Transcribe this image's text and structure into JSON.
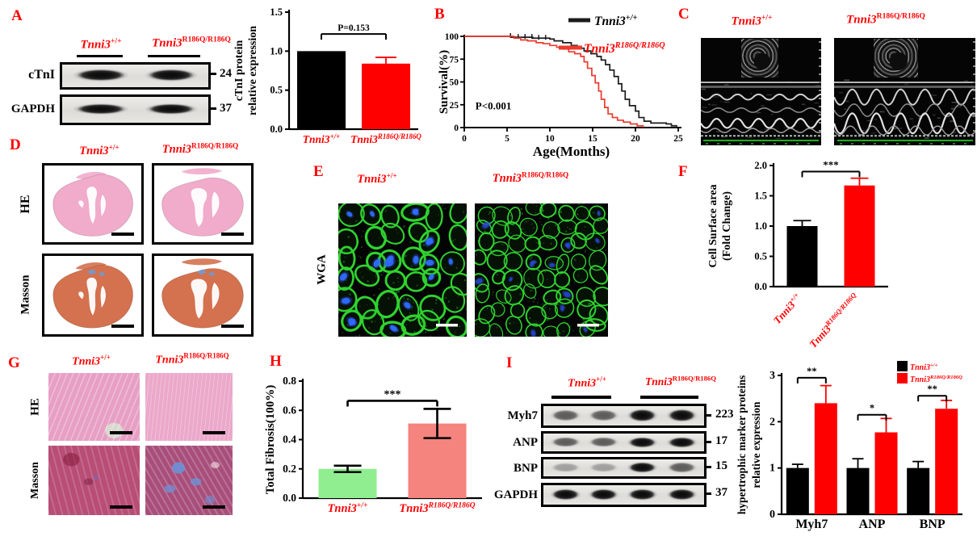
{
  "figure": {
    "genotypes": {
      "wt": {
        "base": "Tnni3",
        "sup": "+/+"
      },
      "mut": {
        "base": "Tnni3",
        "sup": "R186Q/R186Q"
      }
    },
    "colors": {
      "accent_red": "#ff0000",
      "bar_black": "#000000",
      "bar_red": "#ff0000",
      "bar_green": "#90ee90",
      "bar_salmon": "#f5837e",
      "wga_green": "#2fd32f",
      "nucleus_blue": "#2e6bff"
    },
    "panels": {
      "A": {
        "letter": "A",
        "blot_rows": [
          {
            "label": "cTnI",
            "mw": "24"
          },
          {
            "label": "GAPDH",
            "mw": "37"
          }
        ]
      },
      "B": {
        "letter": "B"
      },
      "C": {
        "letter": "C"
      },
      "D": {
        "letter": "D",
        "row_labels": [
          "HE",
          "Masson"
        ]
      },
      "E": {
        "letter": "E",
        "row_label": "WGA"
      },
      "F": {
        "letter": "F"
      },
      "G": {
        "letter": "G",
        "row_labels": [
          "HE",
          "Masson"
        ]
      },
      "H": {
        "letter": "H"
      },
      "I": {
        "letter": "I",
        "blot_rows": [
          {
            "label": "Myh7",
            "mw": "223"
          },
          {
            "label": "ANP",
            "mw": "17"
          },
          {
            "label": "BNP",
            "mw": "15"
          },
          {
            "label": "GAPDH",
            "mw": "37"
          }
        ]
      }
    }
  },
  "chart_data": [
    {
      "type": "bar",
      "title": "",
      "categories": [
        {
          "ref": "wt"
        },
        {
          "ref": "mut"
        }
      ],
      "values": [
        1.0,
        0.84
      ],
      "errors": [
        0,
        0.08
      ],
      "bar_colors": [
        "#000000",
        "#ff0000"
      ],
      "xlabel": "",
      "ylabel": "cTnI protein\nrelative expression",
      "ylim": [
        0,
        1.5
      ],
      "yticks": [
        "0.0",
        "0.5",
        "1.0",
        "1.5"
      ],
      "sig": [
        {
          "a": 0,
          "b": 1,
          "y": 1.22,
          "label": "P=0.153"
        }
      ]
    },
    {
      "type": "km",
      "title": "",
      "xlabel": "Age(Months)",
      "ylabel": "Survival(%)",
      "xlim": [
        0,
        25
      ],
      "ylim": [
        0,
        100
      ],
      "xticks": [
        "0",
        "5",
        "10",
        "15",
        "20",
        "25"
      ],
      "yticks": [
        "0",
        "25",
        "50",
        "75",
        "100"
      ],
      "annotation": {
        "text": "P<0.001",
        "x": 1.3,
        "y": 20
      },
      "series": [
        {
          "name_ref": "wt",
          "color": "#1b1b1b",
          "text_color": "#000000",
          "censors": [
            5.4,
            6.3,
            7.1,
            7.9,
            8.7,
            9.5
          ],
          "points": [
            [
              0,
              100
            ],
            [
              5,
              100
            ],
            [
              5.5,
              99
            ],
            [
              7,
              99
            ],
            [
              8,
              98
            ],
            [
              10,
              97
            ],
            [
              10.5,
              95
            ],
            [
              11.5,
              93
            ],
            [
              12.5,
              90
            ],
            [
              13.2,
              87
            ],
            [
              14,
              84
            ],
            [
              14.8,
              81
            ],
            [
              15.5,
              78
            ],
            [
              16,
              74
            ],
            [
              16.5,
              69
            ],
            [
              17,
              63
            ],
            [
              17.5,
              56
            ],
            [
              18,
              48
            ],
            [
              18.4,
              40
            ],
            [
              18.8,
              31
            ],
            [
              19.3,
              24
            ],
            [
              20,
              18
            ],
            [
              20.4,
              11
            ],
            [
              21,
              7
            ],
            [
              21.8,
              5
            ],
            [
              23.6,
              4
            ],
            [
              24.2,
              2
            ],
            [
              24.8,
              0
            ]
          ]
        },
        {
          "name_ref": "mut",
          "color": "#ea3b2e",
          "text_color": "#ff0000",
          "censors": [],
          "points": [
            [
              0,
              100
            ],
            [
              5.8,
              98
            ],
            [
              6.6,
              96
            ],
            [
              7.4,
              95
            ],
            [
              8.4,
              93
            ],
            [
              9.2,
              92
            ],
            [
              10,
              90
            ],
            [
              10.8,
              88
            ],
            [
              11.6,
              86
            ],
            [
              12.2,
              83
            ],
            [
              12.9,
              81
            ],
            [
              13.6,
              78
            ],
            [
              14,
              72
            ],
            [
              14.4,
              65
            ],
            [
              14.9,
              57
            ],
            [
              15.3,
              49
            ],
            [
              15.7,
              40
            ],
            [
              16,
              31
            ],
            [
              16.4,
              22
            ],
            [
              16.8,
              15
            ],
            [
              17.3,
              11
            ],
            [
              17.9,
              8
            ],
            [
              18.6,
              6
            ],
            [
              19.4,
              4
            ],
            [
              20.2,
              2
            ],
            [
              20.9,
              0
            ]
          ]
        }
      ]
    },
    {
      "type": "bar",
      "title": "",
      "categories": [
        {
          "ref": "wt"
        },
        {
          "ref": "mut"
        }
      ],
      "values": [
        1.0,
        1.67
      ],
      "errors": [
        0.09,
        0.12
      ],
      "bar_colors": [
        "#000000",
        "#ff0000"
      ],
      "xlabel": "",
      "ylabel": "Cell Surface area\n(Fold Change)",
      "ylim": [
        0,
        2.0
      ],
      "yticks": [
        "0.0",
        "0.5",
        "1.0",
        "1.5",
        "2.0"
      ],
      "sig": [
        {
          "a": 0,
          "b": 1,
          "y": 1.9,
          "label": "***"
        }
      ]
    },
    {
      "type": "bar",
      "title": "",
      "categories": [
        {
          "ref": "wt"
        },
        {
          "ref": "mut"
        }
      ],
      "values": [
        0.2,
        0.51
      ],
      "errors": [
        0.022,
        0.1
      ],
      "bar_colors": [
        "#90ee90",
        "#f5837e"
      ],
      "xlabel": "",
      "ylabel": "Total Fibrosis(100%)",
      "ylim": [
        0,
        0.8
      ],
      "yticks": [
        "0.0",
        "0.2",
        "0.4",
        "0.6",
        "0.8"
      ],
      "sig": [
        {
          "a": 0,
          "b": 1,
          "y": 0.665,
          "label": "***"
        }
      ]
    },
    {
      "type": "bar",
      "title": "",
      "categories": [
        "Myh7",
        "ANP",
        "BNP"
      ],
      "series": [
        {
          "name_ref": "wt",
          "color": "#000000",
          "values": [
            1.0,
            1.0,
            1.0
          ],
          "errors": [
            0.08,
            0.2,
            0.14
          ]
        },
        {
          "name_ref": "mut",
          "color": "#ff0000",
          "values": [
            2.4,
            1.77,
            2.28
          ],
          "errors": [
            0.38,
            0.3,
            0.18
          ]
        }
      ],
      "xlabel": "",
      "ylabel": "hypertrophic marker proteins\nrelative expression",
      "ylim": [
        0,
        3
      ],
      "yticks": [
        "0",
        "1",
        "2",
        "3"
      ],
      "sig": [
        {
          "cat": 0,
          "y": 2.95,
          "label": "**"
        },
        {
          "cat": 1,
          "y": 2.15,
          "label": "*"
        },
        {
          "cat": 2,
          "y": 2.56,
          "label": "**"
        }
      ],
      "legend": [
        {
          "ref": "wt",
          "fill": "#000000"
        },
        {
          "ref": "mut",
          "fill": "#ff0000"
        }
      ]
    }
  ]
}
